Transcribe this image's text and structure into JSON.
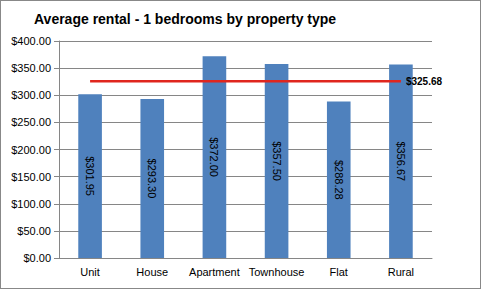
{
  "chart_data": {
    "type": "bar",
    "title": "Average rental - 1 bedrooms by property type",
    "categories": [
      "Unit",
      "House",
      "Apartment",
      "Townhouse",
      "Flat",
      "Rural"
    ],
    "values": [
      301.95,
      293.3,
      372.0,
      357.5,
      288.28,
      356.67
    ],
    "value_labels": [
      "$301.95",
      "$293.30",
      "$372.00",
      "$357.50",
      "$288.28",
      "$356.67"
    ],
    "color": "#4f81bd",
    "data_labels": true,
    "ylim": [
      0,
      400
    ],
    "yticks": [
      {
        "value": 0,
        "label": "$0.00"
      },
      {
        "value": 50,
        "label": "$50.00"
      },
      {
        "value": 100,
        "label": "$100.00"
      },
      {
        "value": 150,
        "label": "$150.00"
      },
      {
        "value": 200,
        "label": "$200.00"
      },
      {
        "value": 250,
        "label": "$250.00"
      },
      {
        "value": 300,
        "label": "$300.00"
      },
      {
        "value": 350,
        "label": "$350.00"
      },
      {
        "value": 400,
        "label": "$400.00"
      }
    ],
    "grid": true,
    "average": {
      "value": 325.68,
      "label": "$325.68",
      "color": "#e0261e"
    }
  }
}
